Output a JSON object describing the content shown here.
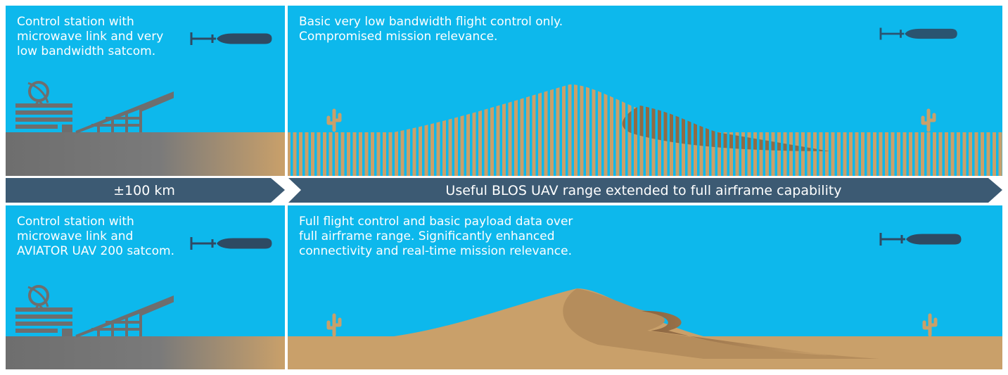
{
  "top_left": {
    "lines": [
      "Control station with",
      "microwave link and very",
      "low bandwidth satcom."
    ]
  },
  "top_right": {
    "lines": [
      "Basic very low bandwidth flight control only.",
      "Compromised mission relevance."
    ]
  },
  "arrows": {
    "left": "±100 km",
    "right": "Useful BLOS UAV range extended to full airframe capability"
  },
  "bottom_left": {
    "lines": [
      "Control station with",
      "microwave link and",
      "AVIATOR UAV 200 satcom."
    ]
  },
  "bottom_right": {
    "lines": [
      "Full flight control and basic payload data over",
      "full airframe range. Significantly enhanced",
      "connectivity and real-time mission relevance."
    ]
  }
}
